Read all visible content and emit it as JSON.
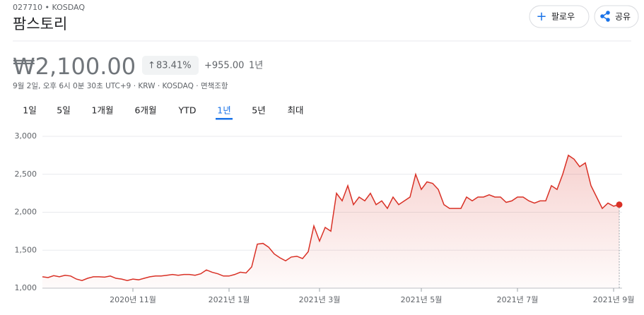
{
  "header": {
    "ticker": "027710 • KOSDAQ",
    "name": "팜스토리",
    "follow": "팔로우",
    "share": "공유",
    "price": "₩2,100.00",
    "change_percent": "83.41%",
    "change_value": "+955.00",
    "change_period": "1년",
    "meta": "9월 2일, 오후 6시 0분 30초 UTC+9 · KRW · KOSDAQ · 면책조항",
    "tabs": [
      "1일",
      "5일",
      "1개월",
      "6개월",
      "YTD",
      "1년",
      "5년",
      "최대"
    ],
    "selected_tab": 5
  },
  "chart_data": {
    "type": "area",
    "color": "#d93025",
    "grid": true,
    "categories": [
      null,
      null,
      null,
      null,
      null,
      null,
      null,
      null,
      null,
      null,
      null,
      null,
      null,
      null,
      null,
      null,
      "2020년 11월",
      null,
      null,
      null,
      null,
      null,
      null,
      null,
      null,
      null,
      null,
      null,
      null,
      null,
      null,
      null,
      null,
      "2021년 1월",
      null,
      null,
      null,
      null,
      null,
      null,
      null,
      null,
      null,
      null,
      null,
      null,
      null,
      null,
      null,
      "2021년 3월",
      null,
      null,
      null,
      null,
      null,
      null,
      null,
      null,
      null,
      null,
      null,
      null,
      null,
      null,
      null,
      null,
      null,
      "2021년 5월",
      null,
      null,
      null,
      null,
      null,
      null,
      null,
      null,
      null,
      null,
      null,
      null,
      null,
      null,
      null,
      null,
      "2021년 7월",
      null,
      null,
      null,
      null,
      null,
      null,
      null,
      null,
      null,
      null,
      null,
      null,
      null,
      null,
      null,
      null,
      "2021년 9월",
      null
    ],
    "values": [
      1150,
      1140,
      1165,
      1150,
      1170,
      1160,
      1120,
      1100,
      1130,
      1150,
      1150,
      1145,
      1160,
      1130,
      1120,
      1100,
      1120,
      1110,
      1130,
      1150,
      1160,
      1160,
      1170,
      1180,
      1170,
      1180,
      1180,
      1170,
      1190,
      1240,
      1210,
      1190,
      1160,
      1160,
      1180,
      1210,
      1200,
      1280,
      1580,
      1590,
      1540,
      1450,
      1400,
      1360,
      1410,
      1420,
      1390,
      1480,
      1820,
      1620,
      1800,
      1750,
      2250,
      2150,
      2350,
      2100,
      2200,
      2150,
      2250,
      2100,
      2150,
      2050,
      2200,
      2100,
      2150,
      2200,
      2500,
      2300,
      2400,
      2380,
      2300,
      2100,
      2050,
      2050,
      2050,
      2200,
      2150,
      2200,
      2200,
      2230,
      2200,
      2200,
      2130,
      2150,
      2200,
      2200,
      2150,
      2120,
      2150,
      2150,
      2350,
      2300,
      2500,
      2750,
      2700,
      2600,
      2650,
      2350,
      2200,
      2050,
      2120,
      2080,
      2100
    ],
    "ylim": [
      1000,
      3000
    ],
    "yticks": [
      {
        "value": 1000,
        "label": "1,000"
      },
      {
        "value": 1500,
        "label": "1,500"
      },
      {
        "value": 2000,
        "label": "2,000"
      },
      {
        "value": 2500,
        "label": "2,500"
      },
      {
        "value": 3000,
        "label": "3,000"
      }
    ]
  }
}
